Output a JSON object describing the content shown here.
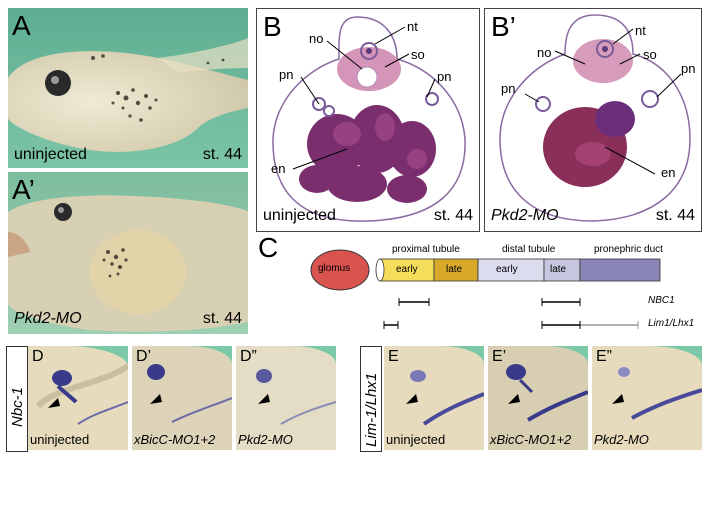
{
  "panels": {
    "A": {
      "letter": "A",
      "condition": "uninjected",
      "stage": "st. 44"
    },
    "A2": {
      "letter": "A’",
      "condition": "Pkd2-MO",
      "stage": "st. 44"
    },
    "B": {
      "letter": "B",
      "condition": "uninjected",
      "stage": "st. 44",
      "labels": {
        "no": "no",
        "nt": "nt",
        "so": "so",
        "pn_left": "pn",
        "pn_right": "pn",
        "en": "en"
      }
    },
    "B2": {
      "letter": "B’",
      "condition": "Pkd2-MO",
      "stage": "st. 44",
      "labels": {
        "no": "no",
        "nt": "nt",
        "so": "so",
        "pn_left": "pn",
        "pn_right": "pn",
        "en": "en"
      }
    },
    "C": {
      "letter": "C",
      "glomus": "glomus",
      "proximal": "proximal tubule",
      "distal": "distal tubule",
      "duct": "pronephric duct",
      "early1": "early",
      "late1": "late",
      "early2": "early",
      "late2": "late",
      "marker1": "NBC1",
      "marker2": "Lim1/Lhx1"
    },
    "row_label_left": "Nbc-1",
    "row_label_right": "Lim-1/Lhx1",
    "D": {
      "letter": "D",
      "caption": "uninjected"
    },
    "D1": {
      "letter": "D’",
      "caption": "xBicC-MO1+2"
    },
    "D2": {
      "letter": "D”",
      "caption": "Pkd2-MO"
    },
    "E": {
      "letter": "E",
      "caption": "uninjected"
    },
    "E1": {
      "letter": "E’",
      "caption": "xBicC-MO1+2"
    },
    "E2": {
      "letter": "E”",
      "caption": "Pkd2-MO"
    }
  },
  "colors": {
    "tadpole_bg": "#6fb89c",
    "glomus": "#d9534f",
    "prox_early": "#f3dd5a",
    "prox_late": "#d9a92a",
    "distal_early": "#dcdcef",
    "distal_late": "#c6c6df",
    "duct": "#8a87b8"
  }
}
